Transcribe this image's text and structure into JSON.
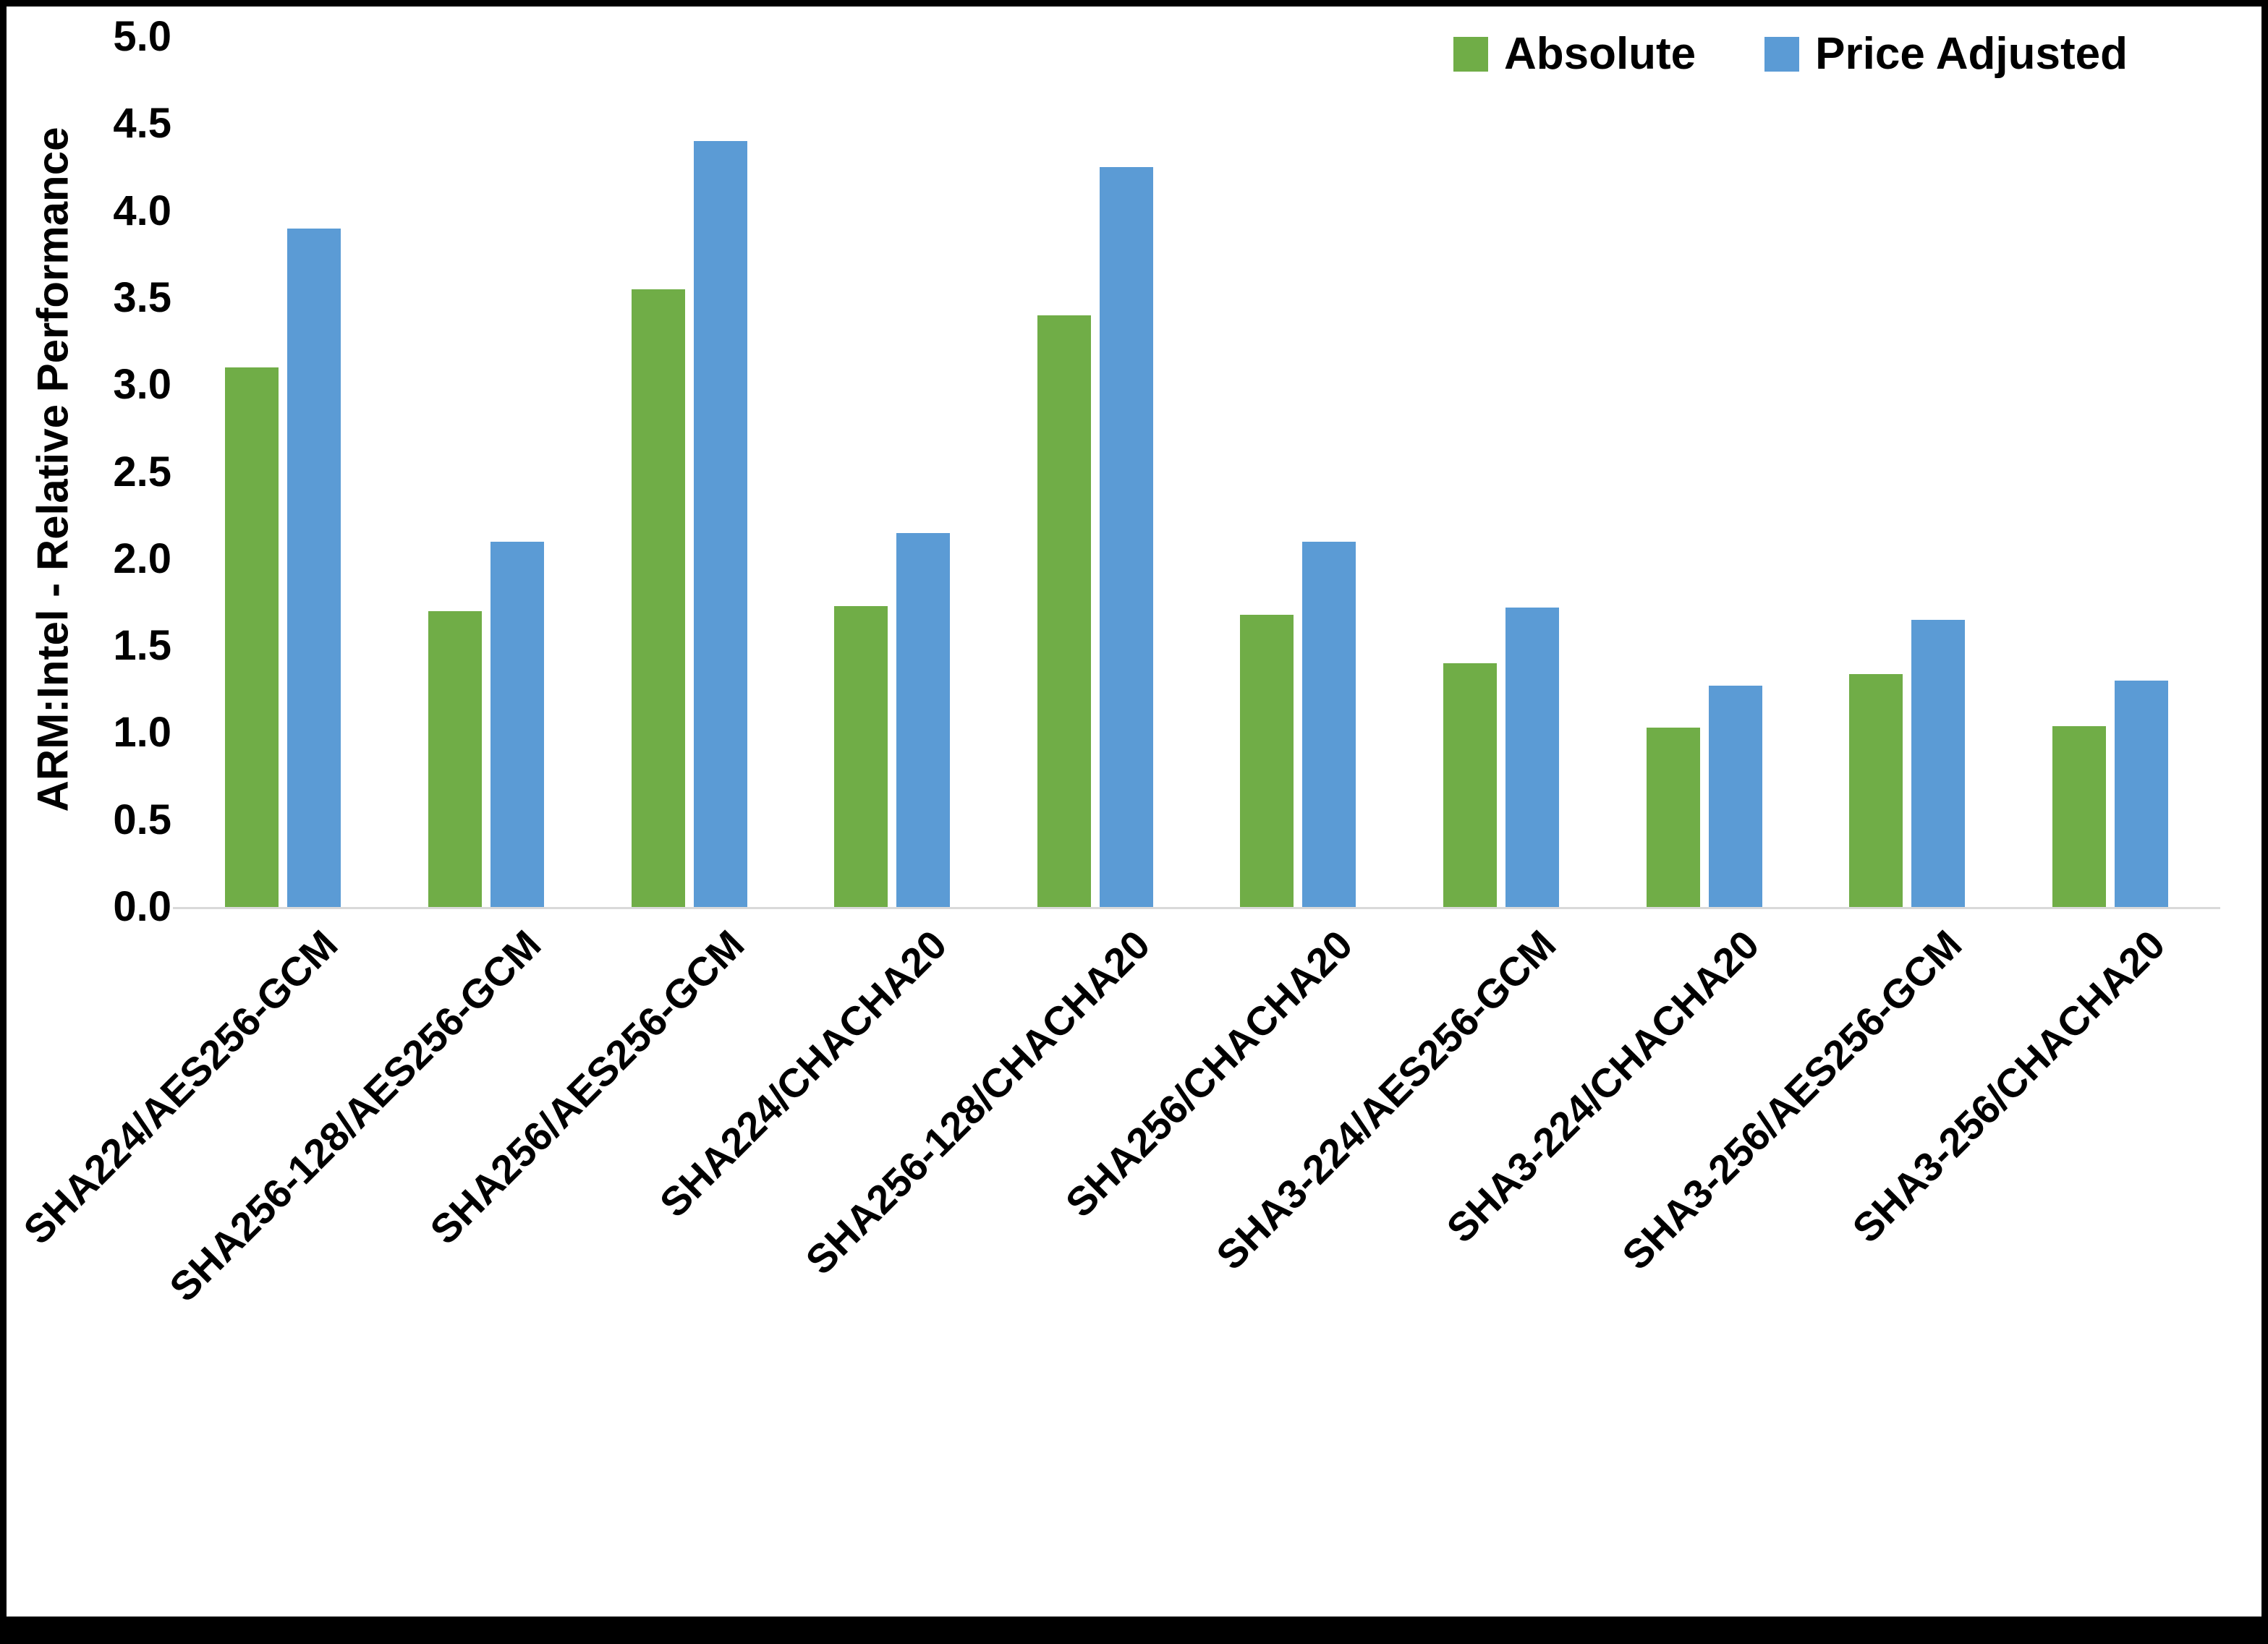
{
  "chart_data": {
    "type": "bar",
    "ylabel": "ARM:Intel - Relative Performance",
    "ylim": [
      0,
      5
    ],
    "ytick_step": 0.5,
    "ytick_decimals": 1,
    "grid": false,
    "legend_position": "top-right",
    "categories": [
      "SHA224/AES256-GCM",
      "SHA256-128/AES256-GCM",
      "SHA256/AES256-GCM",
      "SHA224/CHACHA20",
      "SHA256-128/CHACHA20",
      "SHA256/CHACHA20",
      "SHA3-224/AES256-GCM",
      "SHA3-224/CHACHA20",
      "SHA3-256/AES256-GCM",
      "SHA3-256/CHACHA20"
    ],
    "series": [
      {
        "name": "Absolute",
        "color": "#70AD47",
        "values": [
          3.1,
          1.7,
          3.55,
          1.73,
          3.4,
          1.68,
          1.4,
          1.03,
          1.34,
          1.04
        ]
      },
      {
        "name": "Price Adjusted",
        "color": "#5B9BD5",
        "values": [
          3.9,
          2.1,
          4.4,
          2.15,
          4.25,
          2.1,
          1.72,
          1.27,
          1.65,
          1.3
        ]
      }
    ],
    "colors": {
      "axis_line": "#d9d9d9",
      "text": "#000000",
      "frame": "#000000"
    }
  }
}
